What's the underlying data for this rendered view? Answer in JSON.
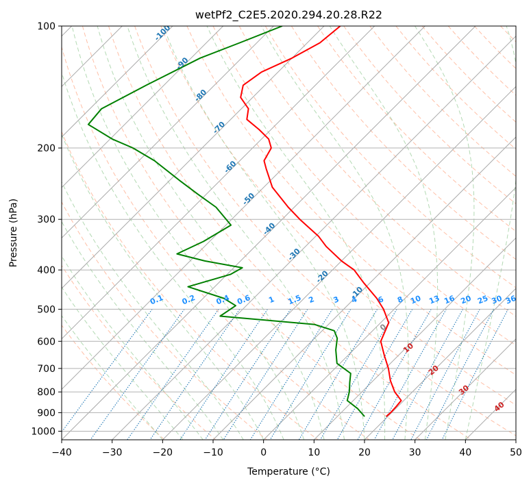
{
  "chart_data": {
    "type": "skew-t",
    "title": "wetPf2_C2E5.2020.294.20.28.R22",
    "xlabel": "Temperature (°C)",
    "ylabel": "Pressure (hPa)",
    "xlim": [
      -40,
      50
    ],
    "ylim_hpa": [
      1050,
      100
    ],
    "x_ticks": [
      -40,
      -30,
      -20,
      -10,
      0,
      10,
      20,
      30,
      40,
      50
    ],
    "x_tick_labels": [
      "−40",
      "−30",
      "−20",
      "−10",
      "0",
      "10",
      "20",
      "30",
      "40",
      "50"
    ],
    "y_ticks": [
      100,
      200,
      300,
      400,
      500,
      600,
      700,
      800,
      900,
      1000
    ],
    "y_tick_labels": [
      "100",
      "200",
      "300",
      "400",
      "500",
      "600",
      "700",
      "800",
      "900",
      "1000"
    ],
    "colors": {
      "temperature": "#ff0000",
      "dewpoint": "#008000",
      "isotherm": "#aaaaaa",
      "dry_adiabat": "#ffaa88",
      "moist_adiabat": "#99cc99",
      "mixing_ratio": "#1f77b4",
      "isotherm_label": "#1f77b4",
      "mixing_label": "#1e90ff",
      "moist_label": "#cc2222",
      "gray_label": "#888888"
    },
    "isotherm_labels": [
      "-100",
      "-90",
      "-80",
      "-70",
      "-60",
      "-50",
      "-40",
      "-30",
      "-20",
      "-10"
    ],
    "mixing_ratio_labels": [
      "0.1",
      "0.2",
      "0.4",
      "0.6",
      "1",
      "1.5",
      "2",
      "3",
      "4",
      "6",
      "8",
      "10",
      "13",
      "16",
      "20",
      "25",
      "30",
      "36"
    ],
    "moist_adiabat_labels": [
      "0",
      "10",
      "20",
      "30",
      "40"
    ],
    "series": [
      {
        "name": "Temperature",
        "points": [
          {
            "p": 100,
            "t": -66.8
          },
          {
            "p": 110,
            "t": -67.5
          },
          {
            "p": 120,
            "t": -70.0
          },
          {
            "p": 130,
            "t": -73.3
          },
          {
            "p": 140,
            "t": -74.3
          },
          {
            "p": 150,
            "t": -72.4
          },
          {
            "p": 160,
            "t": -68.6
          },
          {
            "p": 170,
            "t": -66.8
          },
          {
            "p": 180,
            "t": -62.4
          },
          {
            "p": 190,
            "t": -58.6
          },
          {
            "p": 200,
            "t": -56.3
          },
          {
            "p": 215,
            "t": -55.2
          },
          {
            "p": 225,
            "t": -53.2
          },
          {
            "p": 250,
            "t": -48.3
          },
          {
            "p": 280,
            "t": -41.2
          },
          {
            "p": 300,
            "t": -36.5
          },
          {
            "p": 330,
            "t": -29.5
          },
          {
            "p": 350,
            "t": -25.9
          },
          {
            "p": 380,
            "t": -20.0
          },
          {
            "p": 400,
            "t": -15.7
          },
          {
            "p": 430,
            "t": -11.3
          },
          {
            "p": 470,
            "t": -5.6
          },
          {
            "p": 500,
            "t": -2.1
          },
          {
            "p": 540,
            "t": 1.6
          },
          {
            "p": 600,
            "t": 3.7
          },
          {
            "p": 650,
            "t": 7.2
          },
          {
            "p": 700,
            "t": 10.6
          },
          {
            "p": 750,
            "t": 13.4
          },
          {
            "p": 800,
            "t": 16.5
          },
          {
            "p": 840,
            "t": 19.5
          },
          {
            "p": 870,
            "t": 19.7
          },
          {
            "p": 900,
            "t": 19.8
          },
          {
            "p": 920,
            "t": 19.7
          }
        ]
      },
      {
        "name": "Dewpoint",
        "points": [
          {
            "p": 100,
            "t": -78.3
          },
          {
            "p": 110,
            "t": -83.4
          },
          {
            "p": 120,
            "t": -88.2
          },
          {
            "p": 140,
            "t": -93.5
          },
          {
            "p": 160,
            "t": -97.7
          },
          {
            "p": 175,
            "t": -97.2
          },
          {
            "p": 190,
            "t": -89.6
          },
          {
            "p": 200,
            "t": -83.7
          },
          {
            "p": 215,
            "t": -76.9
          },
          {
            "p": 240,
            "t": -68.2
          },
          {
            "p": 260,
            "t": -61.7
          },
          {
            "p": 280,
            "t": -55.5
          },
          {
            "p": 310,
            "t": -49.0
          },
          {
            "p": 340,
            "t": -51.2
          },
          {
            "p": 365,
            "t": -54.0
          },
          {
            "p": 380,
            "t": -47.1
          },
          {
            "p": 395,
            "t": -38.3
          },
          {
            "p": 410,
            "t": -39.3
          },
          {
            "p": 440,
            "t": -45.3
          },
          {
            "p": 470,
            "t": -35.9
          },
          {
            "p": 490,
            "t": -32.1
          },
          {
            "p": 520,
            "t": -33.1
          },
          {
            "p": 545,
            "t": -12.8
          },
          {
            "p": 565,
            "t": -7.6
          },
          {
            "p": 590,
            "t": -5.5
          },
          {
            "p": 630,
            "t": -3.5
          },
          {
            "p": 680,
            "t": -0.6
          },
          {
            "p": 720,
            "t": 4.1
          },
          {
            "p": 760,
            "t": 5.8
          },
          {
            "p": 800,
            "t": 7.5
          },
          {
            "p": 840,
            "t": 8.8
          },
          {
            "p": 880,
            "t": 12.5
          },
          {
            "p": 920,
            "t": 15.4
          }
        ]
      }
    ]
  }
}
